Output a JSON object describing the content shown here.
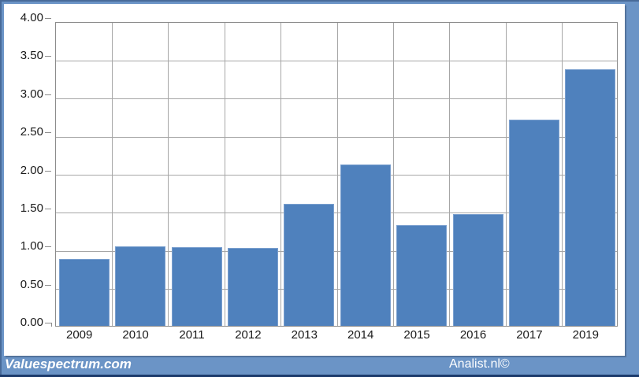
{
  "chart_data": {
    "type": "bar",
    "title": "",
    "xlabel": "",
    "ylabel": "",
    "categories": [
      "2009",
      "2010",
      "2011",
      "2012",
      "2013",
      "2014",
      "2015",
      "2016",
      "2017",
      "2019"
    ],
    "values": [
      0.88,
      1.04,
      1.03,
      1.02,
      1.6,
      2.12,
      1.32,
      1.47,
      2.71,
      3.37
    ],
    "ylim": [
      0,
      4
    ],
    "ytick_step": 0.5,
    "ytick_labels": [
      "4.00",
      "3.50",
      "3.00",
      "2.50",
      "2.00",
      "1.50",
      "1.00",
      "0.50",
      "0.00"
    ],
    "grid": true,
    "legend": "none",
    "bar_color": "#4f81bd",
    "bar_border_color": "#7ba0cf",
    "gridline_color": "#a6a6a6",
    "axis_color": "#8c8c8c",
    "plot_background": "#ffffff"
  },
  "frame": {
    "background_color": "#6b94c6",
    "accent_line_color": "#1c3a6b"
  },
  "footer": {
    "brand": "Valuespectrum.com",
    "credit": "Analist.nl©",
    "text_color": "#ffffff"
  }
}
